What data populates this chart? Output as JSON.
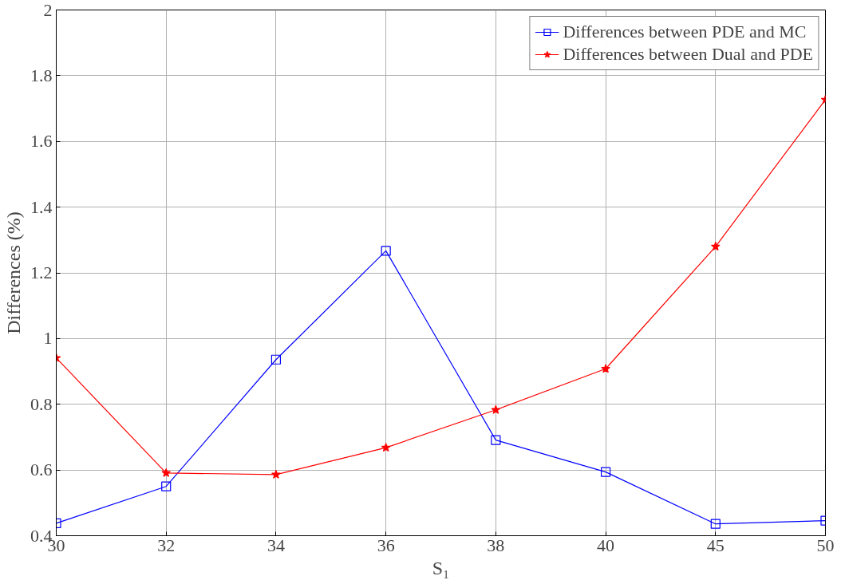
{
  "chart_data": {
    "type": "line",
    "xlabel": "S₁",
    "ylabel": "Differences (%)",
    "categories": [
      "30",
      "32",
      "34",
      "36",
      "38",
      "40",
      "45",
      "50"
    ],
    "series": [
      {
        "name": "Differences between PDE and MC",
        "color": "#0000ff",
        "marker": "square",
        "values": [
          0.438,
          0.55,
          0.936,
          1.267,
          0.691,
          0.594,
          0.436,
          0.446
        ]
      },
      {
        "name": "Differences between Dual and PDE",
        "color": "#ff0000",
        "marker": "star",
        "values": [
          0.941,
          0.591,
          0.586,
          0.668,
          0.783,
          0.908,
          1.28,
          1.727
        ]
      }
    ],
    "ylim": [
      0.4,
      2
    ],
    "yticks": [
      0.4,
      0.6,
      0.8,
      1,
      1.2,
      1.4,
      1.6,
      1.8,
      2
    ],
    "grid": true,
    "legend": "top right",
    "line_style": "solid"
  }
}
